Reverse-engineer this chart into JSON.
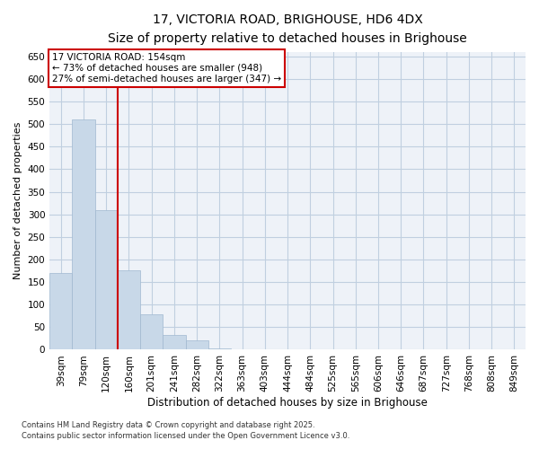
{
  "title_line1": "17, VICTORIA ROAD, BRIGHOUSE, HD6 4DX",
  "title_line2": "Size of property relative to detached houses in Brighouse",
  "xlabel": "Distribution of detached houses by size in Brighouse",
  "ylabel": "Number of detached properties",
  "categories": [
    "39sqm",
    "79sqm",
    "120sqm",
    "160sqm",
    "201sqm",
    "241sqm",
    "282sqm",
    "322sqm",
    "363sqm",
    "403sqm",
    "444sqm",
    "484sqm",
    "525sqm",
    "565sqm",
    "606sqm",
    "646sqm",
    "687sqm",
    "727sqm",
    "768sqm",
    "808sqm",
    "849sqm"
  ],
  "values": [
    170,
    510,
    310,
    175,
    78,
    33,
    20,
    3,
    0,
    0,
    0,
    0,
    0,
    0,
    0,
    0,
    0,
    0,
    0,
    0,
    0
  ],
  "bar_color": "#c8d8e8",
  "bar_edge_color": "#a0b8d0",
  "vline_color": "#cc0000",
  "annotation_text": "17 VICTORIA ROAD: 154sqm\n← 73% of detached houses are smaller (948)\n27% of semi-detached houses are larger (347) →",
  "ylim": [
    0,
    660
  ],
  "yticks": [
    0,
    50,
    100,
    150,
    200,
    250,
    300,
    350,
    400,
    450,
    500,
    550,
    600,
    650
  ],
  "footer_line1": "Contains HM Land Registry data © Crown copyright and database right 2025.",
  "footer_line2": "Contains public sector information licensed under the Open Government Licence v3.0.",
  "bg_color": "#eef2f8",
  "grid_color": "#c0cfe0",
  "title_fontsize": 10,
  "subtitle_fontsize": 9,
  "tick_fontsize": 7.5,
  "ylabel_fontsize": 8,
  "xlabel_fontsize": 8.5,
  "annotation_fontsize": 7.5,
  "footer_fontsize": 6
}
